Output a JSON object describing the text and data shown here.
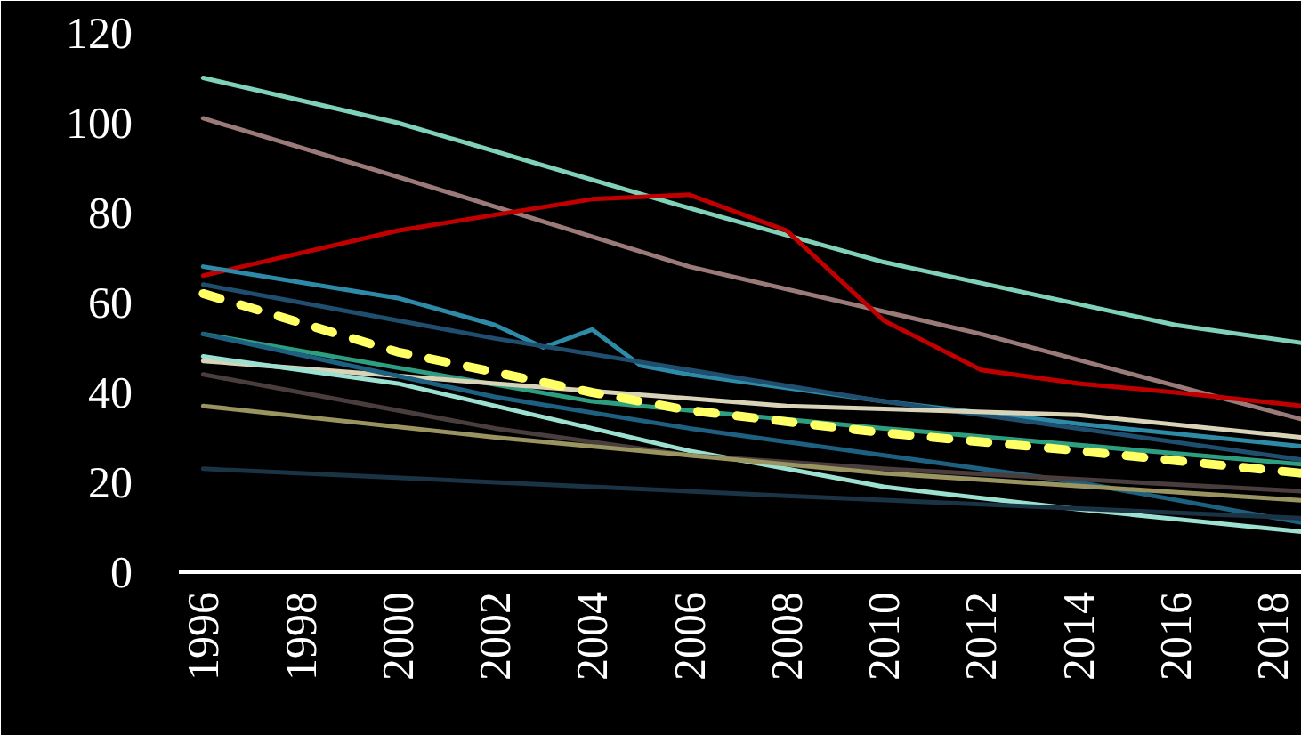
{
  "chart_data": {
    "type": "line",
    "xlim": [
      1995.5,
      2018.6
    ],
    "ylim": [
      0,
      120
    ],
    "xticks": [
      1996,
      1998,
      2000,
      2002,
      2004,
      2006,
      2008,
      2010,
      2012,
      2014,
      2016,
      2018
    ],
    "yticks": [
      0,
      20,
      40,
      60,
      80,
      100,
      120
    ],
    "grid": false,
    "marker": "none",
    "series": [
      {
        "color": "#7fd1b9",
        "x": [
          1996,
          2000,
          2006,
          2010,
          2016,
          2018.6
        ],
        "values": [
          110,
          100,
          81,
          69,
          55,
          51
        ]
      },
      {
        "color": "#9b7a7a",
        "x": [
          1996,
          2000,
          2006,
          2012,
          2018.6
        ],
        "values": [
          101,
          88,
          68,
          53,
          34
        ]
      },
      {
        "color": "#c00000",
        "x": [
          1996,
          2000,
          2004,
          2006,
          2008,
          2010,
          2012,
          2014,
          2016,
          2018.6
        ],
        "values": [
          66,
          76,
          83,
          84,
          76,
          56,
          45,
          42,
          40,
          37
        ]
      },
      {
        "color": "#2e8ba8",
        "x": [
          1996,
          2000,
          2002,
          2003,
          2004,
          2005,
          2006,
          2010,
          2014,
          2018.6
        ],
        "values": [
          68,
          61,
          55,
          50,
          54,
          46,
          44,
          38,
          33,
          28
        ]
      },
      {
        "color": "#1f4e6e",
        "x": [
          1996,
          2002,
          2006,
          2010,
          2018.6
        ],
        "values": [
          64,
          52,
          45,
          38,
          25
        ]
      },
      {
        "color": "#2e9e80",
        "x": [
          1996,
          2004,
          2010,
          2018.6
        ],
        "values": [
          53,
          38,
          32,
          24
        ]
      },
      {
        "color": "#d9d3b8",
        "x": [
          1996,
          2002,
          2008,
          2014,
          2018.6
        ],
        "values": [
          47,
          42,
          37,
          35,
          30
        ]
      },
      {
        "color": "#9be0d0",
        "x": [
          1996,
          2000,
          2004,
          2006,
          2010,
          2014,
          2018.6
        ],
        "values": [
          48,
          42,
          32,
          27,
          19,
          14,
          9
        ]
      },
      {
        "color": "#1e6080",
        "x": [
          1996,
          2002,
          2006,
          2010,
          2014,
          2018.6
        ],
        "values": [
          53,
          39,
          32,
          26,
          20,
          11
        ]
      },
      {
        "color": "#4a3d3d",
        "x": [
          1996,
          2002,
          2006,
          2010,
          2018.6
        ],
        "values": [
          44,
          32,
          26,
          23,
          18
        ]
      },
      {
        "color": "#9a9460",
        "x": [
          1996,
          2002,
          2006,
          2010,
          2018.6
        ],
        "values": [
          37,
          30,
          26,
          22,
          16
        ]
      },
      {
        "color": "#1a3345",
        "x": [
          1996,
          2002,
          2008,
          2018.6
        ],
        "values": [
          23,
          20,
          17,
          12
        ]
      },
      {
        "color": "#ffff66",
        "line_style": "dashed",
        "x": [
          1996,
          2000,
          2004,
          2006,
          2010,
          2014,
          2018.6
        ],
        "values": [
          62,
          49,
          40,
          36,
          31,
          27,
          22
        ]
      }
    ]
  }
}
